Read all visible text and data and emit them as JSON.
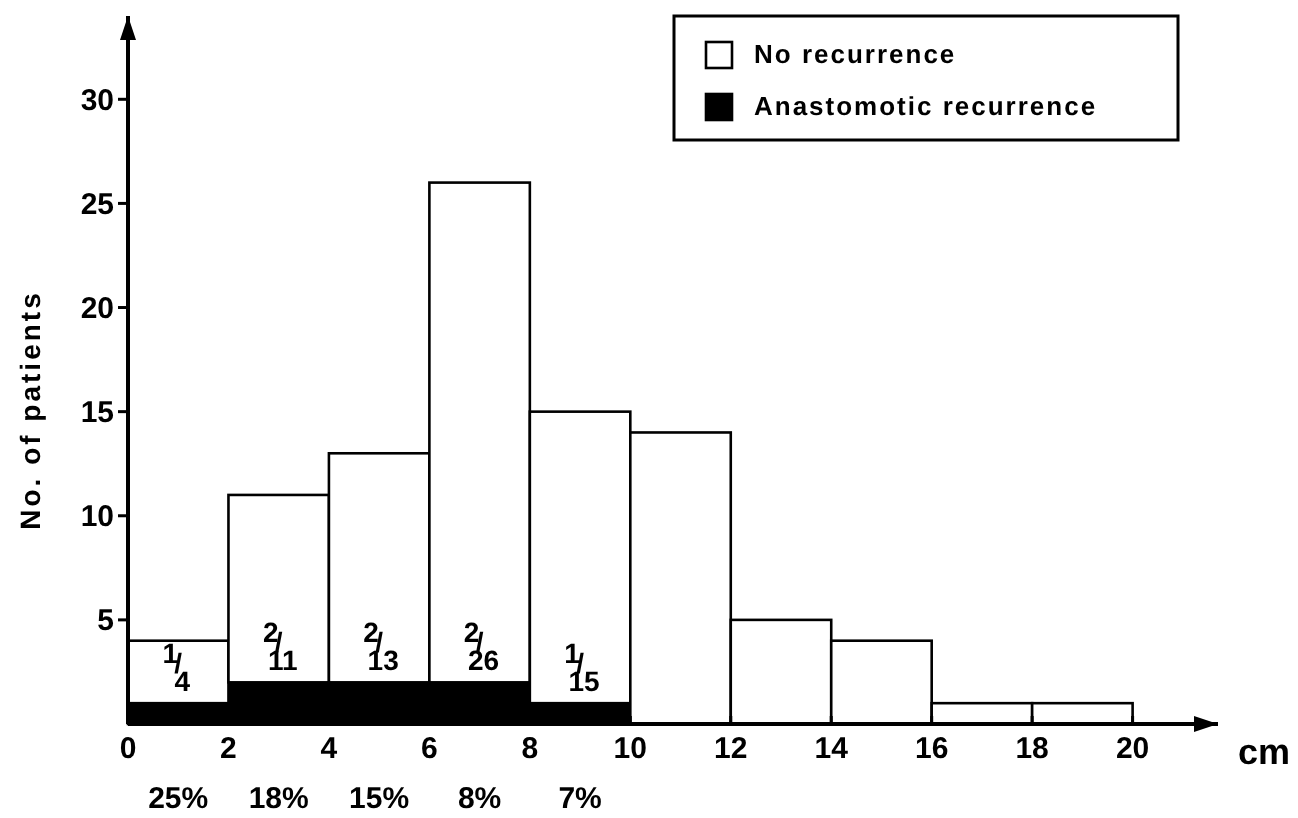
{
  "chart_data": {
    "type": "bar",
    "xlabel": "cm",
    "ylabel": "No. of patients",
    "x": [
      1,
      3,
      5,
      7,
      9,
      11,
      13,
      15,
      17,
      19
    ],
    "stacked": true,
    "series": [
      {
        "name": "Anastomotic recurrence",
        "color": "#000000",
        "values": [
          1,
          2,
          2,
          2,
          1,
          0,
          0,
          0,
          0,
          0
        ]
      },
      {
        "name": "No recurrence",
        "color": "#ffffff",
        "values": [
          3,
          9,
          11,
          24,
          14,
          14,
          5,
          4,
          1,
          1
        ]
      }
    ],
    "xlim": [
      0,
      21.7
    ],
    "ylim": [
      0,
      34
    ],
    "xticks": [
      0,
      2,
      4,
      6,
      8,
      10,
      12,
      14,
      16,
      18,
      20
    ],
    "yticks": [
      5,
      10,
      15,
      20,
      25,
      30
    ],
    "legend": "top right",
    "grid": false,
    "annotations": [
      {
        "text": "1/4",
        "x": 1,
        "y": 1
      },
      {
        "text": "2/11",
        "x": 3,
        "y": 2
      },
      {
        "text": "2/13",
        "x": 5,
        "y": 2
      },
      {
        "text": "2/26",
        "x": 7,
        "y": 2
      },
      {
        "text": "1/15",
        "x": 9,
        "y": 1
      },
      "25%",
      "18%",
      "15%",
      "8%",
      "7%"
    ]
  }
}
